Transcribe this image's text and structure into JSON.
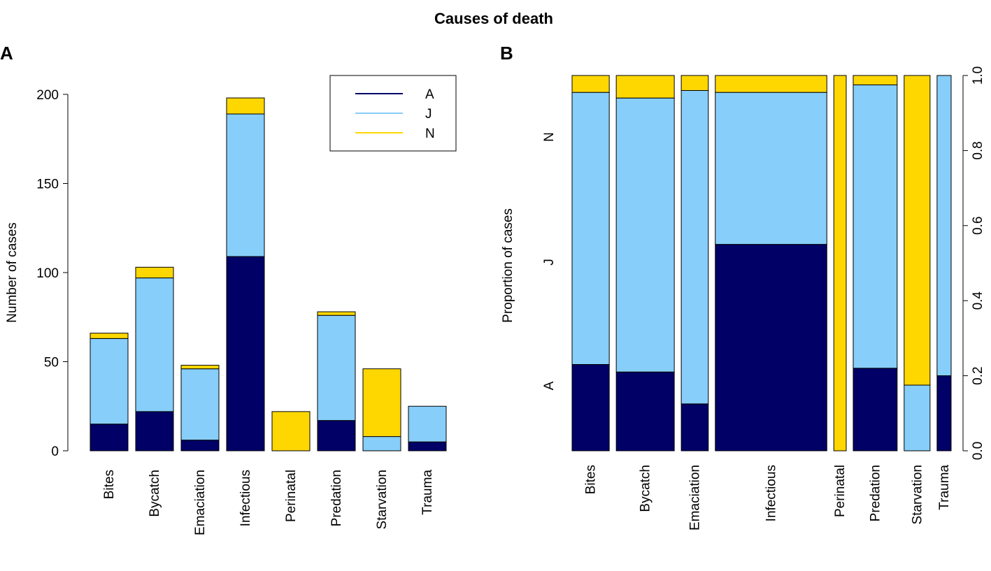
{
  "figure": {
    "title": "Causes of death",
    "panel_a_label": "A",
    "panel_b_label": "B"
  },
  "colors": {
    "A": "#000066",
    "J": "#87CEFA",
    "N": "#FFD700"
  },
  "chart_data": [
    {
      "type": "bar",
      "subtype": "stacked",
      "ylabel": "Number of cases",
      "ylim": [
        0,
        200
      ],
      "yticks": [
        0,
        50,
        100,
        150,
        200
      ],
      "legend": {
        "placement": "top-right",
        "entries": [
          "A",
          "J",
          "N"
        ]
      },
      "categories": [
        "Bites",
        "Bycatch",
        "Emaciation",
        "Infectious",
        "Perinatal",
        "Predation",
        "Starvation",
        "Trauma"
      ],
      "series": [
        {
          "name": "A",
          "values": [
            15,
            22,
            6,
            109,
            0,
            17,
            0,
            5
          ]
        },
        {
          "name": "J",
          "values": [
            48,
            75,
            40,
            80,
            0,
            59,
            8,
            20
          ]
        },
        {
          "name": "N",
          "values": [
            3,
            6,
            2,
            9,
            22,
            2,
            38,
            0
          ]
        }
      ]
    },
    {
      "type": "bar",
      "subtype": "mosaic",
      "ylabel": "Proportion of cases",
      "y_axis_side": "right",
      "ylim": [
        0,
        1
      ],
      "yticks": [
        "0.0",
        "0.2",
        "0.4",
        "0.6",
        "0.8",
        "1.0"
      ],
      "left_labels": [
        "A",
        "J",
        "N"
      ],
      "categories": [
        "Bites",
        "Bycatch",
        "Emaciation",
        "Infectious",
        "Perinatal",
        "Predation",
        "Starvation",
        "Trauma"
      ],
      "totals": [
        66,
        103,
        48,
        198,
        22,
        78,
        46,
        25
      ],
      "series": [
        {
          "name": "A",
          "values": [
            0.23,
            0.21,
            0.125,
            0.55,
            0.0,
            0.22,
            0.0,
            0.2
          ]
        },
        {
          "name": "J",
          "values": [
            0.725,
            0.73,
            0.835,
            0.405,
            0.0,
            0.755,
            0.175,
            0.8
          ]
        },
        {
          "name": "N",
          "values": [
            0.045,
            0.06,
            0.04,
            0.045,
            1.0,
            0.025,
            0.825,
            0.0
          ]
        }
      ]
    }
  ]
}
